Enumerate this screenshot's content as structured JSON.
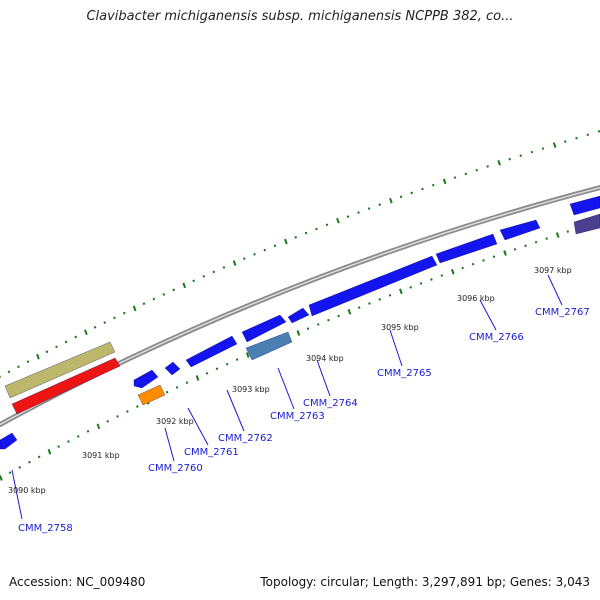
{
  "title": "Clavibacter michiganensis subsp. michiganensis NCPPB 382, co...",
  "footer": {
    "accession": "Accession: NC_009480",
    "summary": "Topology: circular; Length: 3,297,891 bp; Genes: 3,043"
  },
  "colors": {
    "backbone": "#8a8a8a",
    "tick": "#1a7a1a",
    "gene_blue": "#1414ee",
    "gene_red": "#ee1414",
    "gene_orange": "#ff8c00",
    "gene_steelblue": "#4a7fb3",
    "gene_khaki": "#bdb76b",
    "gene_purple": "#4b3f8f",
    "label": "#1a1ad2"
  },
  "scale_labels": [
    "3090 kbp",
    "3091 kbp",
    "3092 kbp",
    "3093 kbp",
    "3094 kbp",
    "3095 kbp",
    "3096 kbp",
    "3097 kbp"
  ],
  "gene_labels": [
    "CMM_2758",
    "CMM_2760",
    "CMM_2761",
    "CMM_2762",
    "CMM_2763",
    "CMM_2764",
    "CMM_2765",
    "CMM_2766",
    "CMM_2767"
  ]
}
